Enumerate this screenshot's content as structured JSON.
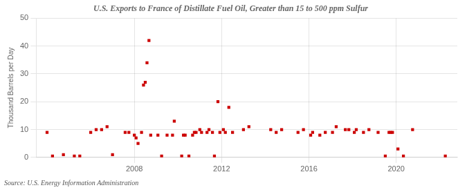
{
  "chart_data": {
    "type": "scatter",
    "title": "U.S. Exports to France of Distillate Fuel Oil, Greater than 15 to 500 ppm Sulfur",
    "ylabel": "Thousand Barrels per Day",
    "annotation": "Source: U.S. Energy Information Administration",
    "color": "#cc0000",
    "marker": "square",
    "grid": true,
    "xlim": [
      2003.5,
      2022.8
    ],
    "xticks": [
      2008,
      2012,
      2016,
      2020
    ],
    "ylim": [
      0,
      50
    ],
    "yticks": [
      0,
      10,
      20,
      30,
      40,
      50
    ],
    "x": [
      2004.0,
      2004.25,
      2004.75,
      2005.25,
      2005.5,
      2006.0,
      2006.25,
      2006.5,
      2006.75,
      2007.0,
      2007.58,
      2007.75,
      2008.0,
      2008.08,
      2008.17,
      2008.33,
      2008.42,
      2008.5,
      2008.58,
      2008.67,
      2008.75,
      2009.08,
      2009.25,
      2009.5,
      2009.75,
      2009.83,
      2010.17,
      2010.25,
      2010.33,
      2010.5,
      2010.67,
      2010.75,
      2010.83,
      2011.0,
      2011.08,
      2011.33,
      2011.42,
      2011.58,
      2011.67,
      2011.83,
      2011.92,
      2012.08,
      2012.17,
      2012.33,
      2012.5,
      2013.0,
      2013.25,
      2014.25,
      2014.5,
      2014.75,
      2015.5,
      2015.75,
      2016.08,
      2016.17,
      2016.5,
      2016.75,
      2017.08,
      2017.25,
      2017.67,
      2017.83,
      2018.08,
      2018.17,
      2018.5,
      2018.75,
      2019.17,
      2019.5,
      2019.67,
      2019.75,
      2019.83,
      2020.08,
      2020.33,
      2020.75,
      2022.25
    ],
    "values": [
      9,
      0.5,
      1,
      0.5,
      0.5,
      9,
      10,
      10,
      11,
      1,
      9,
      9,
      8,
      7,
      5,
      9,
      26,
      27,
      34,
      42,
      8,
      8,
      0.5,
      8,
      8,
      13,
      0.5,
      8,
      8,
      0.5,
      8,
      9,
      9,
      10,
      9,
      9,
      10,
      9,
      0.5,
      20,
      9,
      10,
      9,
      18,
      9,
      10,
      11,
      10,
      9,
      10,
      9,
      10,
      8,
      9,
      8,
      9,
      9,
      11,
      10,
      10,
      9,
      10,
      9,
      10,
      9,
      0.5,
      9,
      9,
      9,
      3,
      0.5,
      10,
      0.5
    ]
  }
}
